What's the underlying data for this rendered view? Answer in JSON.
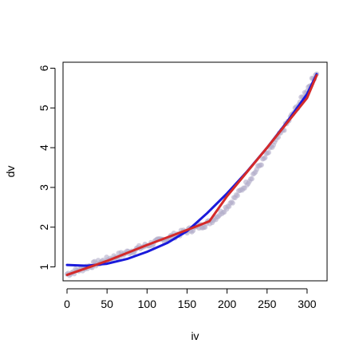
{
  "chart_data": {
    "type": "scatter",
    "title": "",
    "xlabel": "iv",
    "ylabel": "dv",
    "xlim": [
      -5,
      325
    ],
    "ylim": [
      0.65,
      6.15
    ],
    "x_ticks": [
      0,
      50,
      100,
      150,
      200,
      250,
      300
    ],
    "y_ticks": [
      1,
      2,
      3,
      4,
      5,
      6
    ],
    "grid": false,
    "legend": "none",
    "points": {
      "color": "#b3aec9",
      "x_range": [
        0,
        312
      ],
      "y_start": 0.82,
      "breakpoint_x": 170,
      "y_at_breakpoint": 2.05,
      "y_end": 5.9
    },
    "series": [
      {
        "color": "#1a1adb",
        "type": "line",
        "x": [
          0,
          25,
          50,
          75,
          100,
          125,
          150,
          175,
          200,
          225,
          250,
          275,
          300,
          312
        ],
        "y": [
          1.05,
          1.03,
          1.08,
          1.2,
          1.38,
          1.6,
          1.9,
          2.35,
          2.85,
          3.4,
          4.0,
          4.65,
          5.35,
          5.85
        ]
      },
      {
        "color": "#d42a2a",
        "type": "line",
        "x": [
          0,
          50,
          100,
          150,
          178,
          200,
          250,
          300,
          312
        ],
        "y": [
          0.8,
          1.15,
          1.55,
          1.93,
          2.15,
          2.78,
          4.0,
          5.25,
          5.82
        ]
      }
    ]
  }
}
